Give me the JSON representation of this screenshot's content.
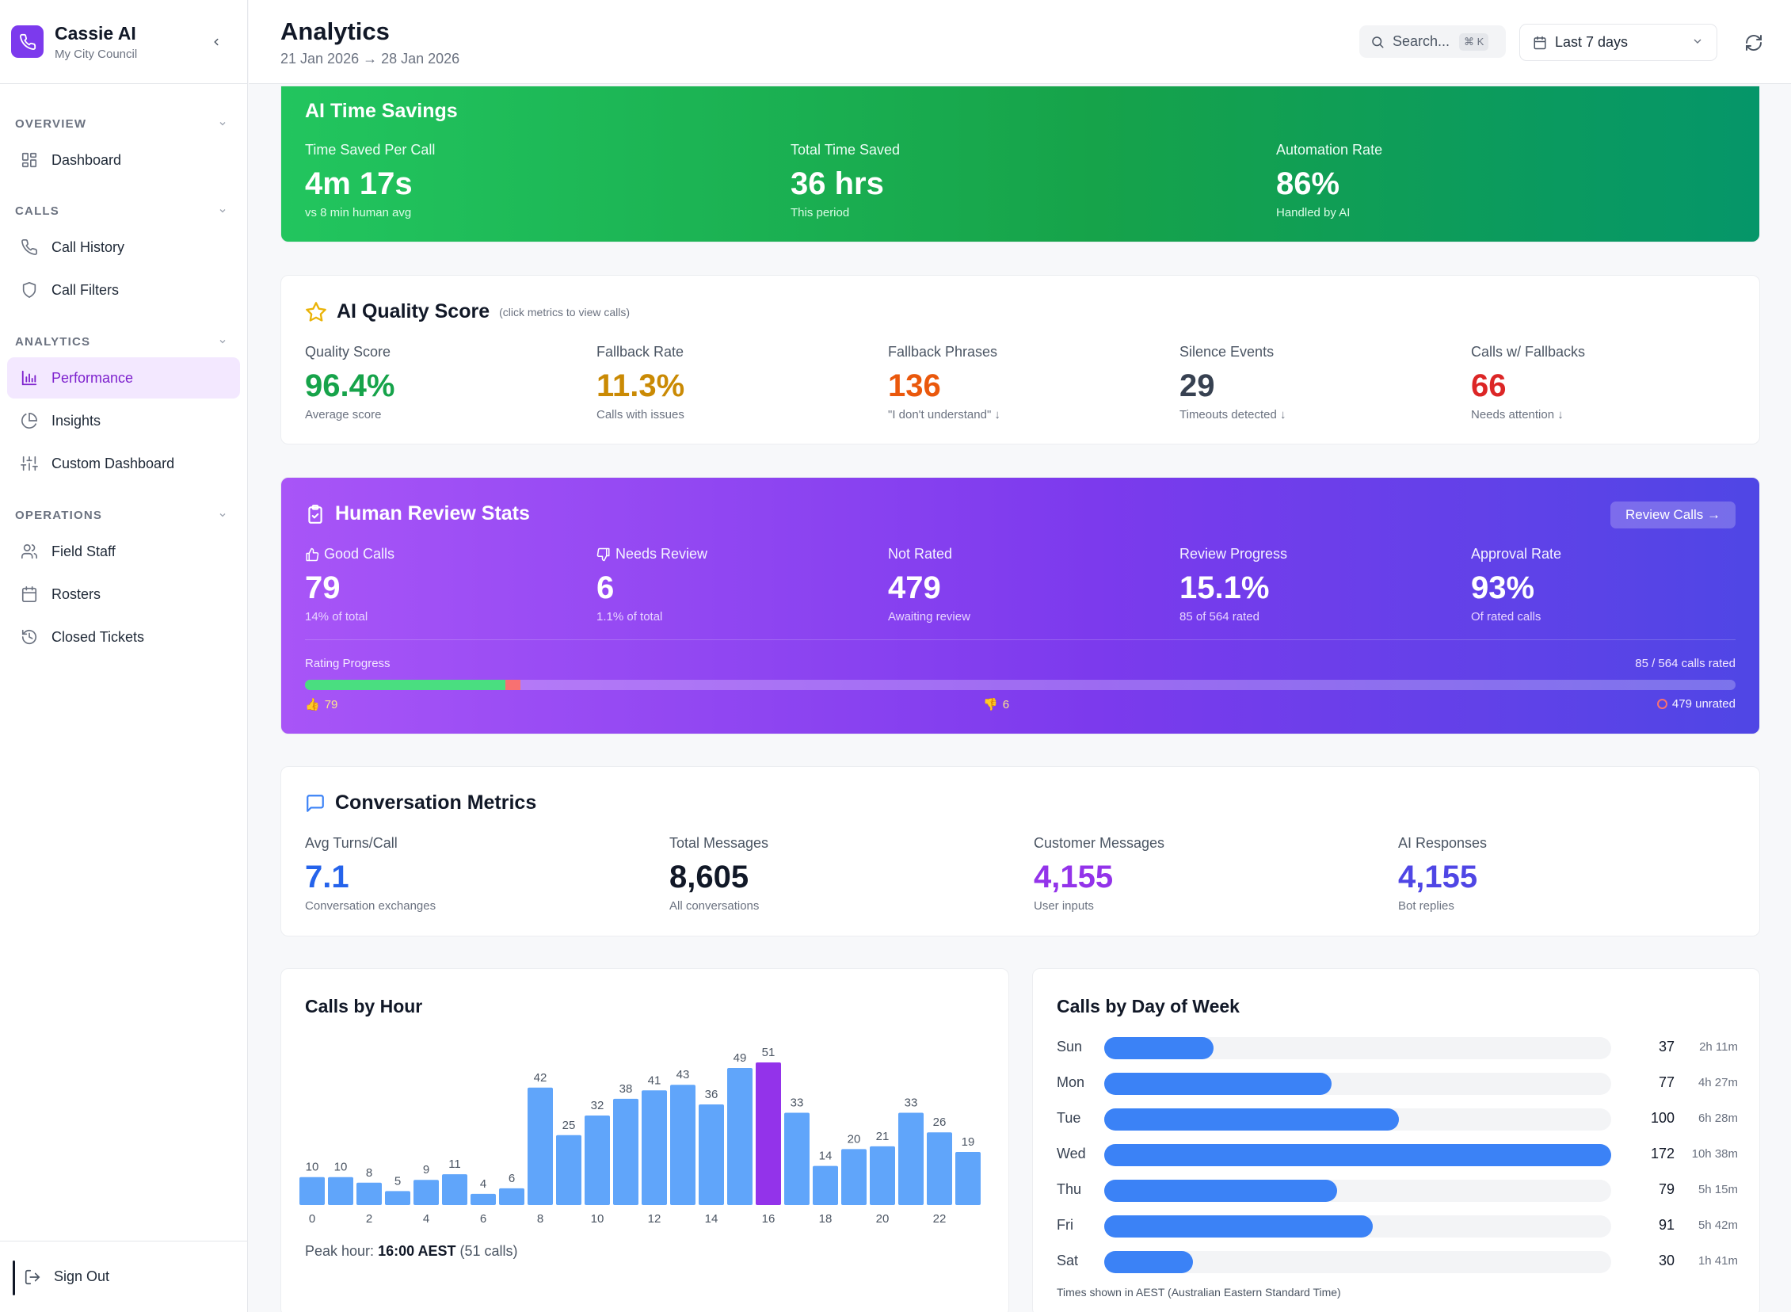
{
  "brand": {
    "name": "Cassie AI",
    "org": "My City Council"
  },
  "sidebar": {
    "sections": [
      {
        "heading": "OVERVIEW",
        "items": [
          {
            "label": "Dashboard",
            "icon": "grid-icon"
          }
        ]
      },
      {
        "heading": "CALLS",
        "items": [
          {
            "label": "Call History",
            "icon": "phone-icon"
          },
          {
            "label": "Call Filters",
            "icon": "shield-icon"
          }
        ]
      },
      {
        "heading": "ANALYTICS",
        "items": [
          {
            "label": "Performance",
            "icon": "bar-chart-icon",
            "active": true
          },
          {
            "label": "Insights",
            "icon": "pie-chart-icon"
          },
          {
            "label": "Custom Dashboard",
            "icon": "sliders-icon"
          }
        ]
      },
      {
        "heading": "OPERATIONS",
        "items": [
          {
            "label": "Field Staff",
            "icon": "users-icon"
          },
          {
            "label": "Rosters",
            "icon": "calendar-icon"
          },
          {
            "label": "Closed Tickets",
            "icon": "history-icon"
          }
        ]
      }
    ],
    "sign_out": "Sign Out"
  },
  "header": {
    "title": "Analytics",
    "date_range": "21 Jan 2026 → 28 Jan 2026",
    "search_placeholder": "Search...",
    "search_shortcut": "⌘ K",
    "period": "Last 7 days"
  },
  "time_savings": {
    "title": "AI Time Savings",
    "metrics": [
      {
        "label": "Time Saved Per Call",
        "value": "4m 17s",
        "sub": "vs 8 min human avg"
      },
      {
        "label": "Total Time Saved",
        "value": "36 hrs",
        "sub": "This period"
      },
      {
        "label": "Automation Rate",
        "value": "86%",
        "sub": "Handled by AI"
      }
    ]
  },
  "quality": {
    "title": "AI Quality Score",
    "hint": "(click metrics to view calls)",
    "metrics": [
      {
        "label": "Quality Score",
        "value": "96.4%",
        "sub": "Average score",
        "color": "#16a34a"
      },
      {
        "label": "Fallback Rate",
        "value": "11.3%",
        "sub": "Calls with issues",
        "color": "#ca8a04"
      },
      {
        "label": "Fallback Phrases",
        "value": "136",
        "sub": "\"I don't understand\" ↓",
        "color": "#ea580c"
      },
      {
        "label": "Silence Events",
        "value": "29",
        "sub": "Timeouts detected ↓",
        "color": "#374151"
      },
      {
        "label": "Calls w/ Fallbacks",
        "value": "66",
        "sub": "Needs attention ↓",
        "color": "#dc2626"
      }
    ]
  },
  "review": {
    "title": "Human Review Stats",
    "button": "Review Calls →",
    "metrics": [
      {
        "label": "Good Calls",
        "value": "79",
        "sub": "14% of total",
        "icon": "thumbs-up-icon"
      },
      {
        "label": "Needs Review",
        "value": "6",
        "sub": "1.1% of total",
        "icon": "thumbs-down-icon"
      },
      {
        "label": "Not Rated",
        "value": "479",
        "sub": "Awaiting review"
      },
      {
        "label": "Review Progress",
        "value": "15.1%",
        "sub": "85 of 564 rated"
      },
      {
        "label": "Approval Rate",
        "value": "93%",
        "sub": "Of rated calls"
      }
    ],
    "progress": {
      "label": "Rating Progress",
      "summary": "85 / 564 calls rated",
      "good": 79,
      "bad": 6,
      "total": 564,
      "good_label": "79",
      "bad_label": "6",
      "unrated_label": "479 unrated"
    }
  },
  "conversation": {
    "title": "Conversation Metrics",
    "metrics": [
      {
        "label": "Avg Turns/Call",
        "value": "7.1",
        "sub": "Conversation exchanges",
        "color": "#2563eb"
      },
      {
        "label": "Total Messages",
        "value": "8,605",
        "sub": "All conversations",
        "color": "#111827"
      },
      {
        "label": "Customer Messages",
        "value": "4,155",
        "sub": "User inputs",
        "color": "#9333ea"
      },
      {
        "label": "AI Responses",
        "value": "4,155",
        "sub": "Bot replies",
        "color": "#4f46e5"
      }
    ]
  },
  "calls_by_hour": {
    "title": "Calls by Hour",
    "peak_prefix": "Peak hour:",
    "peak_time": "16:00 AEST",
    "peak_suffix": "(51 calls)"
  },
  "calls_by_day": {
    "title": "Calls by Day of Week",
    "note": "Times shown in AEST (Australian Eastern Standard Time)",
    "days": [
      {
        "day": "Sun",
        "count": 37,
        "duration": "2h 11m"
      },
      {
        "day": "Mon",
        "count": 77,
        "duration": "4h 27m"
      },
      {
        "day": "Tue",
        "count": 100,
        "duration": "6h 28m"
      },
      {
        "day": "Wed",
        "count": 172,
        "duration": "10h 38m"
      },
      {
        "day": "Thu",
        "count": 79,
        "duration": "5h 15m"
      },
      {
        "day": "Fri",
        "count": 91,
        "duration": "5h 42m"
      },
      {
        "day": "Sat",
        "count": 30,
        "duration": "1h 41m"
      }
    ],
    "max": 172
  },
  "chart_data": [
    {
      "type": "bar",
      "title": "Calls by Hour",
      "categories": [
        "0",
        "1",
        "2",
        "3",
        "4",
        "5",
        "6",
        "7",
        "8",
        "9",
        "10",
        "11",
        "12",
        "13",
        "14",
        "15",
        "16",
        "17",
        "18",
        "19",
        "20",
        "21",
        "22",
        "23"
      ],
      "values": [
        10,
        10,
        8,
        5,
        9,
        11,
        4,
        6,
        42,
        25,
        32,
        38,
        41,
        43,
        36,
        49,
        51,
        33,
        14,
        20,
        21,
        33,
        26,
        19
      ],
      "tick_labels": [
        "0",
        "2",
        "4",
        "6",
        "8",
        "10",
        "12",
        "14",
        "16",
        "18",
        "20",
        "22"
      ],
      "highlight_index": 16,
      "colors": {
        "bar": "#60a5fa",
        "highlight": "#9333ea"
      }
    },
    {
      "type": "bar",
      "title": "Calls by Day of Week",
      "categories": [
        "Sun",
        "Mon",
        "Tue",
        "Wed",
        "Thu",
        "Fri",
        "Sat"
      ],
      "values": [
        37,
        77,
        100,
        172,
        79,
        91,
        30
      ]
    }
  ]
}
